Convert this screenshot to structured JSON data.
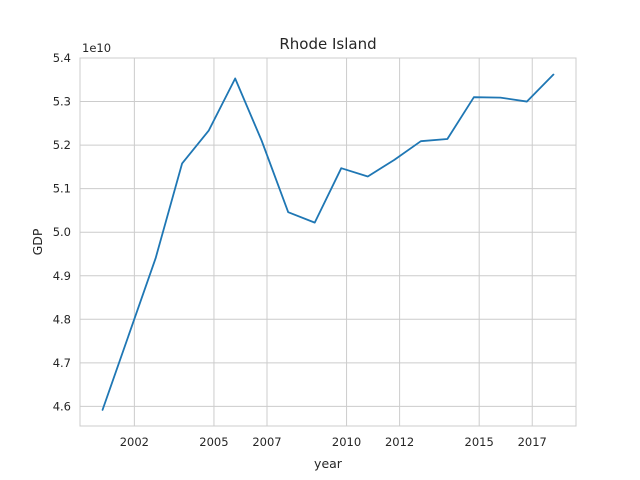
{
  "chart_data": {
    "type": "line",
    "title": "Rhode Island",
    "xlabel": "year",
    "ylabel": "GDP",
    "y_offset_label": "1e10",
    "xlim": [
      1999.95,
      2018.65
    ],
    "ylim": [
      4.555,
      5.4
    ],
    "x_ticks": [
      2002,
      2005,
      2007,
      2010,
      2012,
      2015,
      2017
    ],
    "y_ticks": [
      4.6,
      4.7,
      4.8,
      4.9,
      5.0,
      5.1,
      5.2,
      5.3,
      5.4
    ],
    "grid": true,
    "series_color": "#1f77b4",
    "series": [
      {
        "x": [
          2000.8,
          2002.8,
          2003.8,
          2004.8,
          2005.8,
          2006.8,
          2007.8,
          2008.8,
          2009.8,
          2010.8,
          2011.8,
          2012.8,
          2013.8,
          2014.8,
          2015.8,
          2016.8,
          2017.8
        ],
        "values": [
          4.592,
          4.94,
          5.158,
          5.233,
          5.353,
          5.21,
          5.046,
          5.022,
          5.147,
          5.128,
          5.166,
          5.209,
          5.214,
          5.31,
          5.309,
          5.3,
          5.362
        ]
      }
    ]
  }
}
